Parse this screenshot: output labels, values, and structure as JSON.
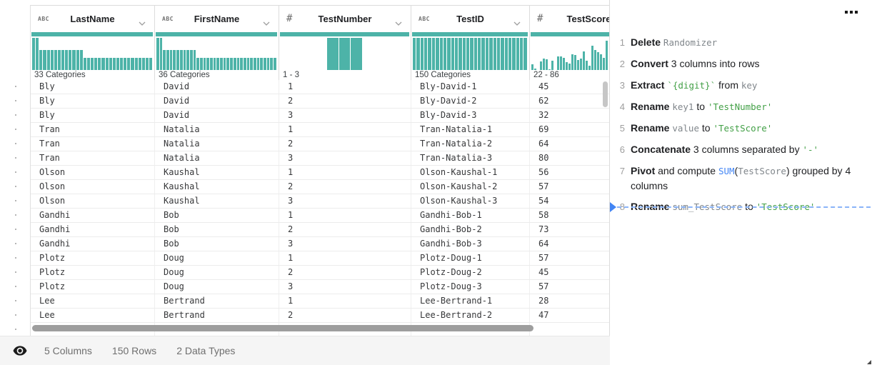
{
  "grid": {
    "teal": "#4DB3A8",
    "columns": [
      {
        "type_icon": "ABC",
        "name": "LastName",
        "range": "33 Categories",
        "hist": [
          100,
          100,
          62,
          62,
          62,
          62,
          62,
          62,
          62,
          62,
          62,
          62,
          62,
          62,
          38,
          38,
          38,
          38,
          38,
          38,
          38,
          38,
          38,
          38,
          38,
          38,
          38,
          38,
          38,
          38,
          38,
          38,
          38
        ]
      },
      {
        "type_icon": "ABC",
        "name": "FirstName",
        "range": "36 Categories",
        "hist": [
          100,
          100,
          62,
          62,
          62,
          62,
          62,
          62,
          62,
          62,
          62,
          62,
          38,
          38,
          38,
          38,
          38,
          38,
          38,
          38,
          38,
          38,
          38,
          38,
          38,
          38,
          38,
          38,
          38,
          38,
          38,
          38,
          38,
          38,
          38,
          38
        ]
      },
      {
        "type_icon": "#",
        "name": "TestNumber",
        "range": "1 - 3",
        "hist": [
          0,
          0,
          0,
          0,
          100,
          100,
          100,
          0,
          0,
          0,
          0
        ]
      },
      {
        "type_icon": "ABC",
        "name": "TestID",
        "range": "150 Categories",
        "hist": [
          100,
          100,
          100,
          100,
          100,
          100,
          100,
          100,
          100,
          100,
          100,
          100,
          100,
          100,
          100,
          100,
          100,
          100,
          100,
          100,
          100,
          100,
          100,
          100,
          100,
          100,
          100,
          100,
          100,
          100
        ]
      },
      {
        "type_icon": "#",
        "name": "TestScore",
        "range": "22 - 86",
        "hist": [
          18,
          4,
          0,
          26,
          36,
          33,
          2,
          30,
          0,
          42,
          42,
          38,
          24,
          20,
          50,
          46,
          32,
          36,
          58,
          28,
          14,
          76,
          62,
          56,
          50,
          38,
          92
        ]
      }
    ],
    "rows": [
      [
        "Bly",
        "David",
        "1",
        "Bly-David-1",
        "45"
      ],
      [
        "Bly",
        "David",
        "2",
        "Bly-David-2",
        "62"
      ],
      [
        "Bly",
        "David",
        "3",
        "Bly-David-3",
        "32"
      ],
      [
        "Tran",
        "Natalia",
        "1",
        "Tran-Natalia-1",
        "69"
      ],
      [
        "Tran",
        "Natalia",
        "2",
        "Tran-Natalia-2",
        "64"
      ],
      [
        "Tran",
        "Natalia",
        "3",
        "Tran-Natalia-3",
        "80"
      ],
      [
        "Olson",
        "Kaushal",
        "1",
        "Olson-Kaushal-1",
        "56"
      ],
      [
        "Olson",
        "Kaushal",
        "2",
        "Olson-Kaushal-2",
        "57"
      ],
      [
        "Olson",
        "Kaushal",
        "3",
        "Olson-Kaushal-3",
        "54"
      ],
      [
        "Gandhi",
        "Bob",
        "1",
        "Gandhi-Bob-1",
        "58"
      ],
      [
        "Gandhi",
        "Bob",
        "2",
        "Gandhi-Bob-2",
        "73"
      ],
      [
        "Gandhi",
        "Bob",
        "3",
        "Gandhi-Bob-3",
        "64"
      ],
      [
        "Plotz",
        "Doug",
        "1",
        "Plotz-Doug-1",
        "57"
      ],
      [
        "Plotz",
        "Doug",
        "2",
        "Plotz-Doug-2",
        "45"
      ],
      [
        "Plotz",
        "Doug",
        "3",
        "Plotz-Doug-3",
        "57"
      ],
      [
        "Lee",
        "Bertrand",
        "1",
        "Lee-Bertrand-1",
        "28"
      ],
      [
        "Lee",
        "Bertrand",
        "2",
        "Lee-Bertrand-2",
        "47"
      ]
    ]
  },
  "status_bar": {
    "items": [
      "5 Columns",
      "150 Rows",
      "2 Data Types"
    ]
  },
  "recipe": {
    "steps": [
      {
        "num": "1",
        "segments": [
          [
            "b",
            "Delete "
          ],
          [
            "m",
            "Randomizer"
          ]
        ]
      },
      {
        "num": "2",
        "segments": [
          [
            "b",
            "Convert "
          ],
          [
            "p",
            "3 columns into rows"
          ]
        ]
      },
      {
        "num": "3",
        "segments": [
          [
            "b",
            "Extract "
          ],
          [
            "g",
            "`{digit}`"
          ],
          [
            "p",
            " from "
          ],
          [
            "m",
            "key"
          ]
        ]
      },
      {
        "num": "4",
        "segments": [
          [
            "b",
            "Rename "
          ],
          [
            "m",
            "key1"
          ],
          [
            "p",
            " to "
          ],
          [
            "g",
            "'TestNumber'"
          ]
        ]
      },
      {
        "num": "5",
        "segments": [
          [
            "b",
            "Rename "
          ],
          [
            "m",
            "value"
          ],
          [
            "p",
            " to "
          ],
          [
            "g",
            "'TestScore'"
          ]
        ]
      },
      {
        "num": "6",
        "segments": [
          [
            "b",
            "Concatenate "
          ],
          [
            "p",
            "3 columns separated by "
          ],
          [
            "g",
            "'-'"
          ]
        ]
      },
      {
        "num": "7",
        "segments": [
          [
            "b",
            "Pivot "
          ],
          [
            "p",
            "and compute "
          ],
          [
            "u",
            "SUM"
          ],
          [
            "p",
            "("
          ],
          [
            "m",
            "TestScore"
          ],
          [
            "p",
            ") grouped by 4 columns"
          ]
        ]
      },
      {
        "num": "8",
        "segments": [
          [
            "b",
            "Rename "
          ],
          [
            "m",
            "sum_TestScore"
          ],
          [
            "p",
            " to "
          ],
          [
            "g",
            "'TestScore'"
          ]
        ]
      }
    ]
  }
}
